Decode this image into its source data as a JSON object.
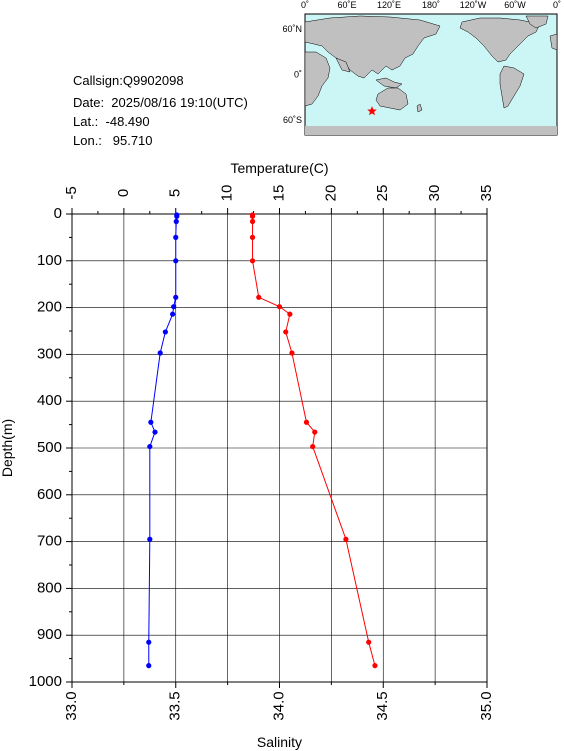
{
  "station": {
    "callsign": "Callsign:Q9902098",
    "date": "Date:  2025/08/16 19:10(UTC)",
    "lat": "Lat.:  -48.490",
    "lon": "Lon.:   95.710"
  },
  "map": {
    "lon_labels": [
      "0˚",
      "60˚E",
      "120˚E",
      "180˚",
      "120˚W",
      "60˚W",
      "0˚"
    ],
    "lat_labels": [
      "60˚N",
      "0˚",
      "60˚S"
    ],
    "ocean_color": "#ccf5f5",
    "land_color": "#c0c0c0",
    "marker_icon": "star-icon",
    "marker_color": "#ff0000",
    "marker_lon": 95.71,
    "marker_lat": -48.49
  },
  "chart_data": {
    "type": "line",
    "top_axis_label": "Temperature(C)",
    "bottom_axis_label": "Salinity",
    "left_axis_label": "Depth(m)",
    "temperature_ticks": [
      "-5",
      "0",
      "5",
      "10",
      "15",
      "20",
      "25",
      "30",
      "35"
    ],
    "salinity_ticks": [
      "33.0",
      "33.5",
      "34.0",
      "34.5",
      "35.0"
    ],
    "depth_ticks": [
      "0",
      "100",
      "200",
      "300",
      "400",
      "500",
      "600",
      "700",
      "800",
      "900",
      "1000"
    ],
    "temperature_range": [
      -5,
      35
    ],
    "salinity_range": [
      33.0,
      35.0
    ],
    "depth_range": [
      0,
      1000
    ],
    "grid": true,
    "series": [
      {
        "color": "#0000ff",
        "x_axis": "temperature",
        "depth": [
          2,
          5,
          16,
          50,
          100,
          178,
          198,
          214,
          252,
          297,
          445,
          466,
          497,
          695,
          915,
          965
        ],
        "values": [
          5.1,
          5.1,
          5.05,
          5.0,
          5.0,
          5.0,
          4.8,
          4.7,
          4.0,
          3.5,
          2.6,
          3.0,
          2.5,
          2.5,
          2.4,
          2.4
        ]
      },
      {
        "color": "#ff0000",
        "x_axis": "salinity",
        "depth": [
          2,
          5,
          16,
          50,
          100,
          178,
          198,
          214,
          252,
          297,
          445,
          466,
          497,
          695,
          915,
          965
        ],
        "values": [
          33.87,
          33.87,
          33.87,
          33.87,
          33.87,
          33.9,
          34.0,
          34.05,
          34.03,
          34.06,
          34.13,
          34.17,
          34.16,
          34.32,
          34.43,
          34.46
        ]
      }
    ]
  }
}
